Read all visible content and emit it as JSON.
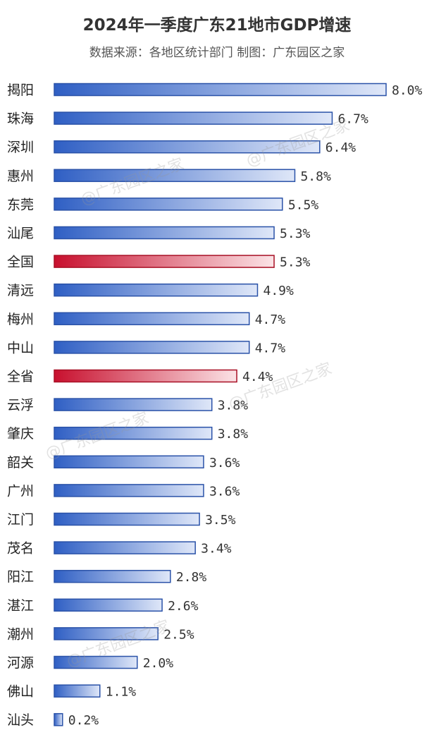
{
  "chart_data": {
    "type": "bar",
    "orientation": "horizontal",
    "title": "2024年一季度广东21地市GDP增速",
    "subtitle": "数据来源：各地区统计部门 制图：广东园区之家",
    "categories": [
      "揭阳",
      "珠海",
      "深圳",
      "惠州",
      "东莞",
      "汕尾",
      "全国",
      "清远",
      "梅州",
      "中山",
      "全省",
      "云浮",
      "肇庆",
      "韶关",
      "广州",
      "江门",
      "茂名",
      "阳江",
      "湛江",
      "潮州",
      "河源",
      "佛山",
      "汕头"
    ],
    "values": [
      8.0,
      6.7,
      6.4,
      5.8,
      5.5,
      5.3,
      5.3,
      4.9,
      4.7,
      4.7,
      4.4,
      3.8,
      3.8,
      3.6,
      3.6,
      3.5,
      3.4,
      2.8,
      2.6,
      2.5,
      2.0,
      1.1,
      0.2
    ],
    "value_labels": [
      "8.0%",
      "6.7%",
      "6.4%",
      "5.8%",
      "5.5%",
      "5.3%",
      "5.3%",
      "4.9%",
      "4.7%",
      "4.7%",
      "4.4%",
      "3.8%",
      "3.8%",
      "3.6%",
      "3.6%",
      "3.5%",
      "3.4%",
      "2.8%",
      "2.6%",
      "2.5%",
      "2.0%",
      "1.1%",
      "0.2%"
    ],
    "highlighted": [
      "全国",
      "全省"
    ],
    "xlabel": "",
    "ylabel": "",
    "xlim": [
      0,
      8.0
    ],
    "grid": false,
    "legend": "none",
    "colors": {
      "bar_dark": "#2f5fc4",
      "bar_light": "#dfe7f8",
      "bar_border": "#2a52a8",
      "highlight_dark": "#c8102e",
      "highlight_light": "#fbe3e6",
      "highlight_border": "#a80f24"
    }
  },
  "watermark": "@广东园区之家"
}
